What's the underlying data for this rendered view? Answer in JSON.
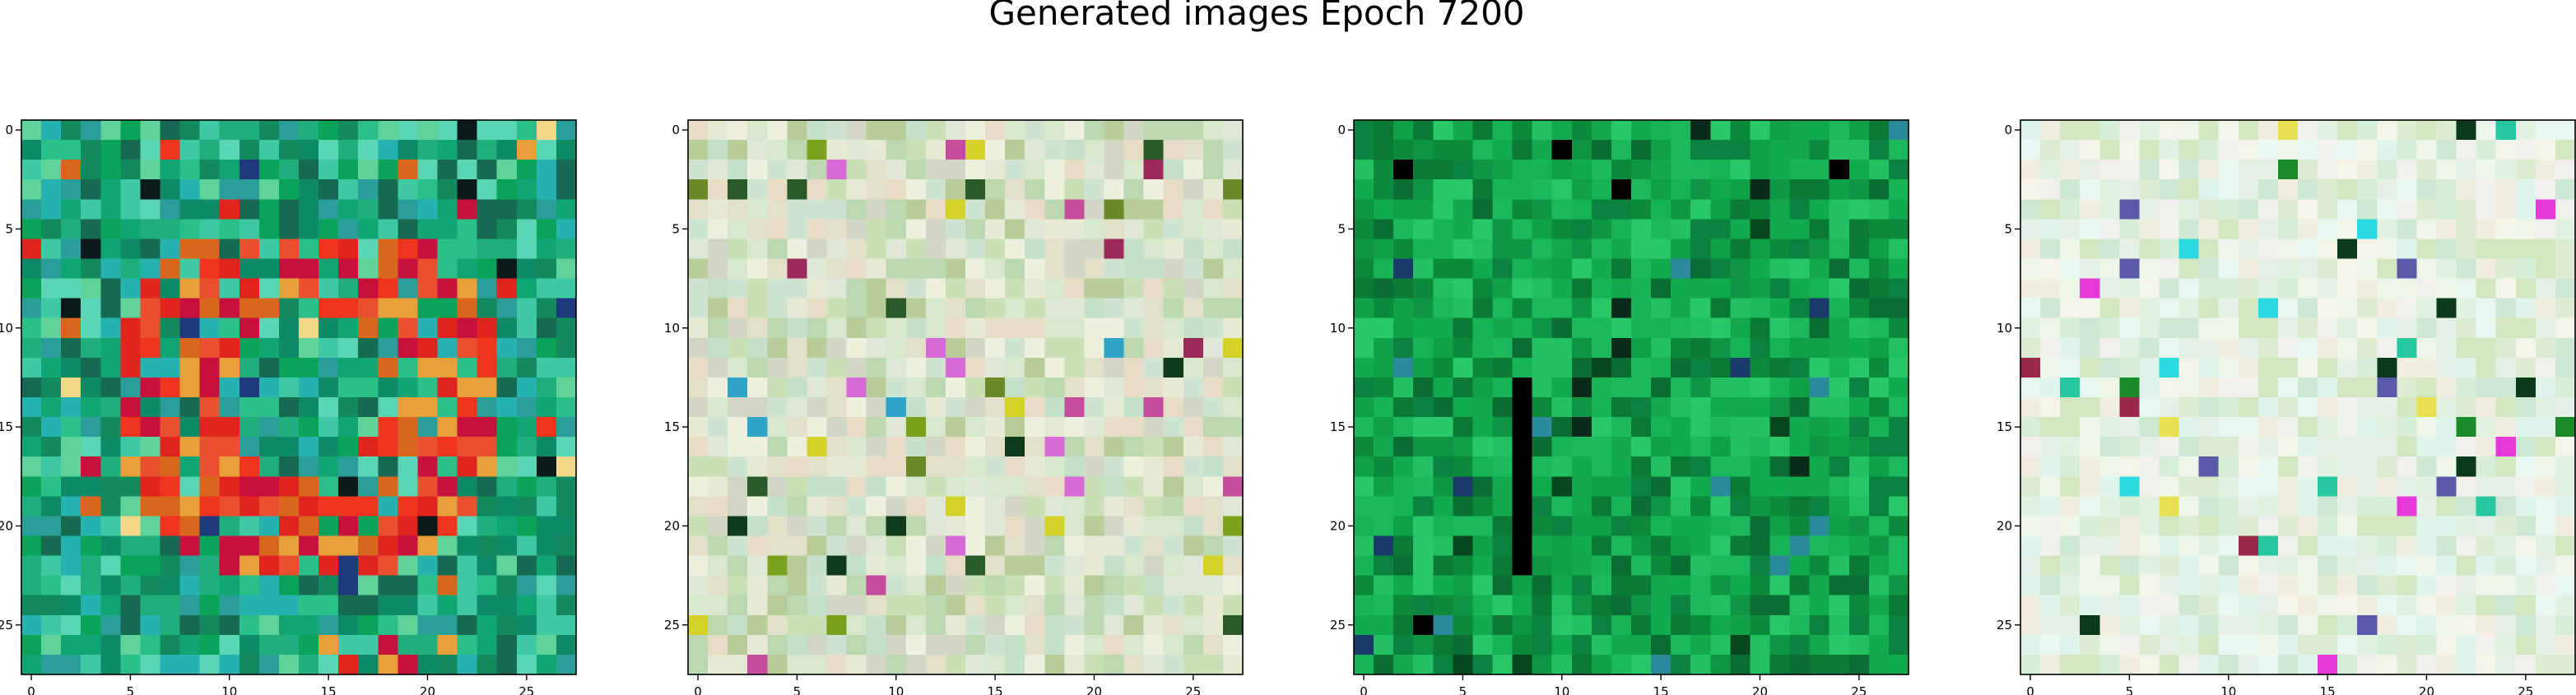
{
  "figure": {
    "title": "Generated images Epoch 7200"
  },
  "chart_data": [
    {
      "type": "heatmap",
      "panel": 1,
      "grid_size": [
        28,
        28
      ],
      "x_ticks": [
        0,
        5,
        10,
        15,
        20,
        25
      ],
      "y_ticks": [
        0,
        5,
        10,
        15,
        20,
        25
      ],
      "xlim": [
        -0.5,
        27.5
      ],
      "ylim": [
        27.5,
        -0.5
      ],
      "grid": false,
      "palette": [
        "#1fae7c",
        "#2bc08a",
        "#12a574",
        "#3ec9a4",
        "#0e8a66",
        "#5ad6b5",
        "#138a5e",
        "#2a9e98",
        "#0aa35a",
        "#5fd39a",
        "#176a52",
        "#26b3b0"
      ],
      "pattern": {
        "description": "dark green-teal noise with a red/orange ring in the centre",
        "accent_colors": [
          "#e0241f",
          "#f0341e",
          "#d8661c",
          "#e8a13a",
          "#c8103c",
          "#0a1a1a",
          "#f5d78a",
          "#1e3a7a"
        ]
      }
    },
    {
      "type": "heatmap",
      "panel": 2,
      "grid_size": [
        28,
        28
      ],
      "x_ticks": [
        0,
        5,
        10,
        15,
        20,
        25
      ],
      "y_ticks": [
        0,
        5,
        10,
        15,
        20,
        25
      ],
      "xlim": [
        -0.5,
        27.5
      ],
      "ylim": [
        27.5,
        -0.5
      ],
      "grid": false,
      "palette": [
        "#d8e8cc",
        "#e6ead4",
        "#c9dfb5",
        "#eef0de",
        "#d2d6c4",
        "#bcd8b0",
        "#e2e0c8",
        "#c4e0c8",
        "#dfe8d6",
        "#b8cc9a",
        "#e8dcc6",
        "#cfe4d0"
      ],
      "pattern": {
        "description": "pale cream/light green noise with sparse dark and colored pixels",
        "accent_colors": [
          "#c64d9c",
          "#d86ad8",
          "#2a5a2a",
          "#0f3a1c",
          "#7aa21c",
          "#2fa3c8",
          "#d4d22a",
          "#6a8a2a",
          "#9a2a5a"
        ]
      }
    },
    {
      "type": "heatmap",
      "panel": 3,
      "grid_size": [
        28,
        28
      ],
      "x_ticks": [
        0,
        5,
        10,
        15,
        20,
        25
      ],
      "y_ticks": [
        0,
        5,
        10,
        15,
        20,
        25
      ],
      "xlim": [
        -0.5,
        27.5
      ],
      "ylim": [
        27.5,
        -0.5
      ],
      "grid": false,
      "palette": [
        "#0fa048",
        "#16b454",
        "#0c8a3c",
        "#22c060",
        "#0a7a36",
        "#12aa4e",
        "#1cb85c",
        "#0e9644",
        "#0a6e34",
        "#28c868",
        "#14a84c",
        "#0b8240"
      ],
      "pattern": {
        "description": "saturated green noise with a few dark pixels and a dark vertical streak",
        "accent_colors": [
          "#000000",
          "#0a2a1a",
          "#1a3a6a",
          "#2a8a9a",
          "#06471f"
        ]
      }
    },
    {
      "type": "heatmap",
      "panel": 4,
      "grid_size": [
        28,
        28
      ],
      "x_ticks": [
        0,
        5,
        10,
        15,
        20,
        25
      ],
      "y_ticks": [
        0,
        5,
        10,
        15,
        20,
        25
      ],
      "xlim": [
        -0.5,
        27.5
      ],
      "ylim": [
        27.5,
        -0.5
      ],
      "grid": false,
      "palette": [
        "#eef6ea",
        "#e2f2e2",
        "#f4f4e8",
        "#d6eed8",
        "#e8f8f0",
        "#dcecd0",
        "#f0eede",
        "#cde8d2",
        "#e6f0e6",
        "#d2e6c0",
        "#f2f0ec",
        "#dff4ea"
      ],
      "pattern": {
        "description": "very light white/mint noise with sparse colored pixels",
        "accent_colors": [
          "#e63ad8",
          "#2ad8e0",
          "#1a8a2a",
          "#9a2a4a",
          "#5a5aa8",
          "#e8e050",
          "#26c8a0",
          "#0a3a1a"
        ]
      }
    }
  ]
}
